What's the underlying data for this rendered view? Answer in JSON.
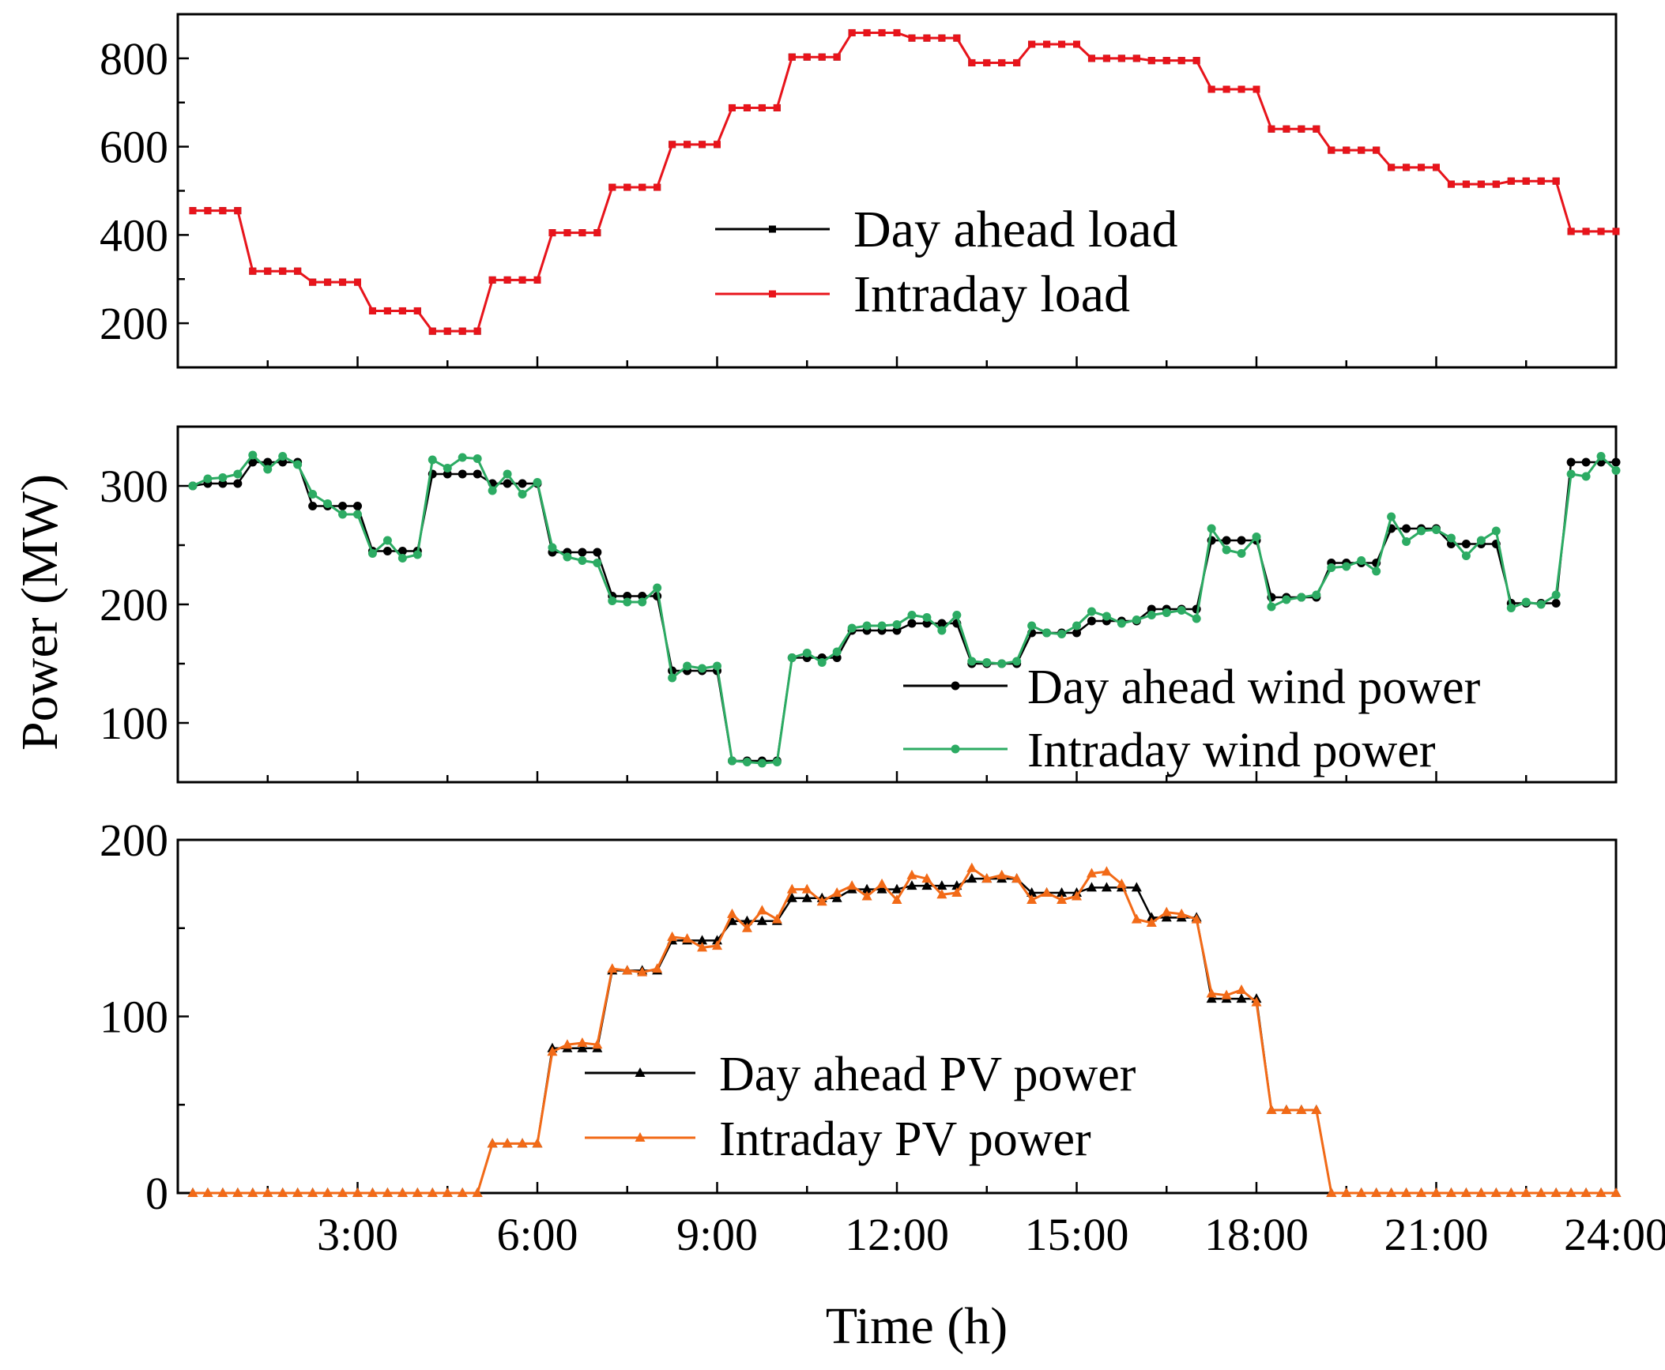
{
  "figure": {
    "ylabel": "Power (MW)",
    "xlabel": "Time (h)"
  },
  "chart_data": [
    {
      "type": "line",
      "panel": "load",
      "x_unit": "hours",
      "xlim": [
        0,
        24
      ],
      "ylim": [
        100,
        900
      ],
      "yticks": [
        200,
        400,
        600,
        800
      ],
      "ytick_labels": [
        "200",
        "400",
        "600",
        "800"
      ],
      "marker": "square",
      "legend_position": "center",
      "series": [
        {
          "name": "Day ahead load",
          "color": "#000000",
          "values": [
            455,
            455,
            455,
            455,
            318,
            318,
            318,
            318,
            293,
            293,
            293,
            293,
            228,
            228,
            228,
            228,
            182,
            182,
            182,
            182,
            298,
            298,
            298,
            298,
            405,
            405,
            405,
            405,
            508,
            508,
            508,
            508,
            605,
            605,
            605,
            605,
            688,
            688,
            688,
            688,
            803,
            803,
            803,
            803,
            858,
            858,
            858,
            858,
            846,
            846,
            846,
            846,
            790,
            790,
            790,
            790,
            832,
            832,
            832,
            832,
            800,
            800,
            800,
            800,
            795,
            795,
            795,
            795,
            730,
            730,
            730,
            730,
            640,
            640,
            640,
            640,
            592,
            592,
            592,
            592,
            553,
            553,
            553,
            553,
            515,
            515,
            515,
            515,
            522,
            522,
            522,
            522,
            408,
            408,
            408,
            408
          ]
        },
        {
          "name": "Intraday load",
          "color": "#e8141b",
          "values": [
            455,
            455,
            455,
            455,
            318,
            318,
            318,
            318,
            293,
            293,
            293,
            293,
            228,
            228,
            228,
            228,
            182,
            182,
            182,
            182,
            298,
            298,
            298,
            298,
            405,
            405,
            405,
            405,
            508,
            508,
            508,
            508,
            605,
            605,
            605,
            605,
            688,
            688,
            688,
            688,
            803,
            803,
            803,
            803,
            858,
            858,
            858,
            858,
            846,
            846,
            846,
            846,
            790,
            790,
            790,
            790,
            832,
            832,
            832,
            832,
            800,
            800,
            800,
            800,
            795,
            795,
            795,
            795,
            730,
            730,
            730,
            730,
            640,
            640,
            640,
            640,
            592,
            592,
            592,
            592,
            553,
            553,
            553,
            553,
            515,
            515,
            515,
            515,
            522,
            522,
            522,
            522,
            408,
            408,
            408,
            408
          ]
        }
      ]
    },
    {
      "type": "line",
      "panel": "wind",
      "x_unit": "hours",
      "xlim": [
        0,
        24
      ],
      "ylim": [
        50,
        350
      ],
      "yticks": [
        100,
        200,
        300
      ],
      "ytick_labels": [
        "100",
        "200",
        "300"
      ],
      "marker": "circle",
      "legend_position": "bottom-right",
      "series": [
        {
          "name": "Day ahead wind power",
          "color": "#000000",
          "values": [
            300,
            302,
            302,
            302,
            320,
            320,
            320,
            320,
            283,
            283,
            283,
            283,
            245,
            245,
            245,
            245,
            310,
            310,
            310,
            310,
            302,
            302,
            302,
            302,
            244,
            244,
            244,
            244,
            207,
            207,
            207,
            207,
            144,
            144,
            144,
            144,
            68,
            68,
            68,
            68,
            155,
            155,
            155,
            155,
            178,
            178,
            178,
            178,
            184,
            184,
            184,
            184,
            150,
            150,
            150,
            150,
            176,
            176,
            176,
            176,
            186,
            186,
            186,
            186,
            196,
            196,
            196,
            196,
            254,
            254,
            254,
            254,
            206,
            206,
            206,
            206,
            235,
            235,
            235,
            235,
            264,
            264,
            264,
            264,
            251,
            251,
            251,
            251,
            201,
            201,
            201,
            201,
            320,
            320,
            320,
            320
          ]
        },
        {
          "name": "Intraday wind power",
          "color": "#2cab63",
          "values": [
            300,
            306,
            307,
            310,
            326,
            314,
            325,
            318,
            293,
            285,
            276,
            276,
            243,
            254,
            239,
            242,
            322,
            315,
            324,
            323,
            296,
            310,
            293,
            303,
            248,
            240,
            237,
            235,
            203,
            202,
            202,
            214,
            138,
            148,
            146,
            148,
            68,
            67,
            66,
            67,
            155,
            159,
            151,
            160,
            180,
            182,
            182,
            183,
            191,
            189,
            178,
            191,
            152,
            151,
            150,
            152,
            182,
            176,
            175,
            182,
            194,
            190,
            184,
            187,
            191,
            193,
            195,
            188,
            264,
            246,
            243,
            257,
            198,
            204,
            206,
            208,
            231,
            232,
            237,
            228,
            274,
            253,
            262,
            263,
            256,
            241,
            254,
            262,
            197,
            202,
            200,
            208,
            310,
            308,
            325,
            313
          ]
        }
      ]
    },
    {
      "type": "line",
      "panel": "pv",
      "x_unit": "hours",
      "xlim": [
        0,
        24
      ],
      "ylim": [
        0,
        200
      ],
      "yticks": [
        0,
        100,
        200
      ],
      "ytick_labels": [
        "0",
        "100",
        "200"
      ],
      "marker": "triangle",
      "legend_position": "bottom-center",
      "series": [
        {
          "name": "Day ahead PV power",
          "color": "#000000",
          "values": [
            0,
            0,
            0,
            0,
            0,
            0,
            0,
            0,
            0,
            0,
            0,
            0,
            0,
            0,
            0,
            0,
            0,
            0,
            0,
            0,
            28,
            28,
            28,
            28,
            82,
            82,
            82,
            82,
            126,
            126,
            126,
            126,
            143,
            143,
            143,
            143,
            154,
            154,
            154,
            154,
            167,
            167,
            167,
            167,
            172,
            172,
            172,
            172,
            174,
            174,
            174,
            174,
            178,
            178,
            178,
            178,
            170,
            170,
            170,
            170,
            173,
            173,
            173,
            173,
            156,
            156,
            156,
            156,
            110,
            110,
            110,
            110,
            47,
            47,
            47,
            47,
            0,
            0,
            0,
            0,
            0,
            0,
            0,
            0,
            0,
            0,
            0,
            0,
            0,
            0,
            0,
            0,
            0,
            0,
            0,
            0
          ]
        },
        {
          "name": "Intraday PV power",
          "color": "#f26a17",
          "values": [
            0,
            0,
            0,
            0,
            0,
            0,
            0,
            0,
            0,
            0,
            0,
            0,
            0,
            0,
            0,
            0,
            0,
            0,
            0,
            0,
            28,
            28,
            28,
            28,
            80,
            84,
            85,
            84,
            127,
            126,
            125,
            127,
            145,
            144,
            139,
            140,
            158,
            150,
            160,
            155,
            172,
            172,
            165,
            170,
            174,
            168,
            175,
            166,
            180,
            178,
            169,
            170,
            184,
            178,
            180,
            178,
            166,
            170,
            166,
            168,
            181,
            182,
            175,
            155,
            153,
            159,
            158,
            155,
            113,
            112,
            115,
            108,
            47,
            47,
            47,
            47,
            0,
            0,
            0,
            0,
            0,
            0,
            0,
            0,
            0,
            0,
            0,
            0,
            0,
            0,
            0,
            0,
            0,
            0,
            0,
            0
          ]
        }
      ],
      "xticks": [
        3,
        6,
        9,
        12,
        15,
        18,
        21,
        24
      ],
      "xtick_labels": [
        "3:00",
        "6:00",
        "9:00",
        "12:00",
        "15:00",
        "18:00",
        "21:00",
        "24:00"
      ]
    }
  ]
}
